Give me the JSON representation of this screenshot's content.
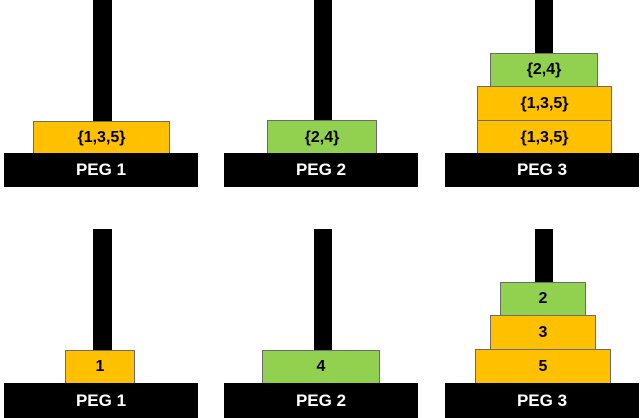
{
  "colors": {
    "orange_disk": "#ffc000",
    "green_disk": "#92d050",
    "peg": "#000000",
    "base_text": "#ffffff"
  },
  "top_row": {
    "peg1": {
      "label": "PEG 1",
      "disks": [
        "{1,3,5}"
      ]
    },
    "peg2": {
      "label": "PEG 2",
      "disks": [
        "{2,4}"
      ]
    },
    "peg3": {
      "label": "PEG 3",
      "disks": [
        "{2,4}",
        "{1,3,5}",
        "{1,3,5}"
      ]
    }
  },
  "bottom_row": {
    "peg1": {
      "label": "PEG 1",
      "disks": [
        "1"
      ]
    },
    "peg2": {
      "label": "PEG 2",
      "disks": [
        "4"
      ]
    },
    "peg3": {
      "label": "PEG 3",
      "disks": [
        "2",
        "3",
        "5"
      ]
    }
  }
}
